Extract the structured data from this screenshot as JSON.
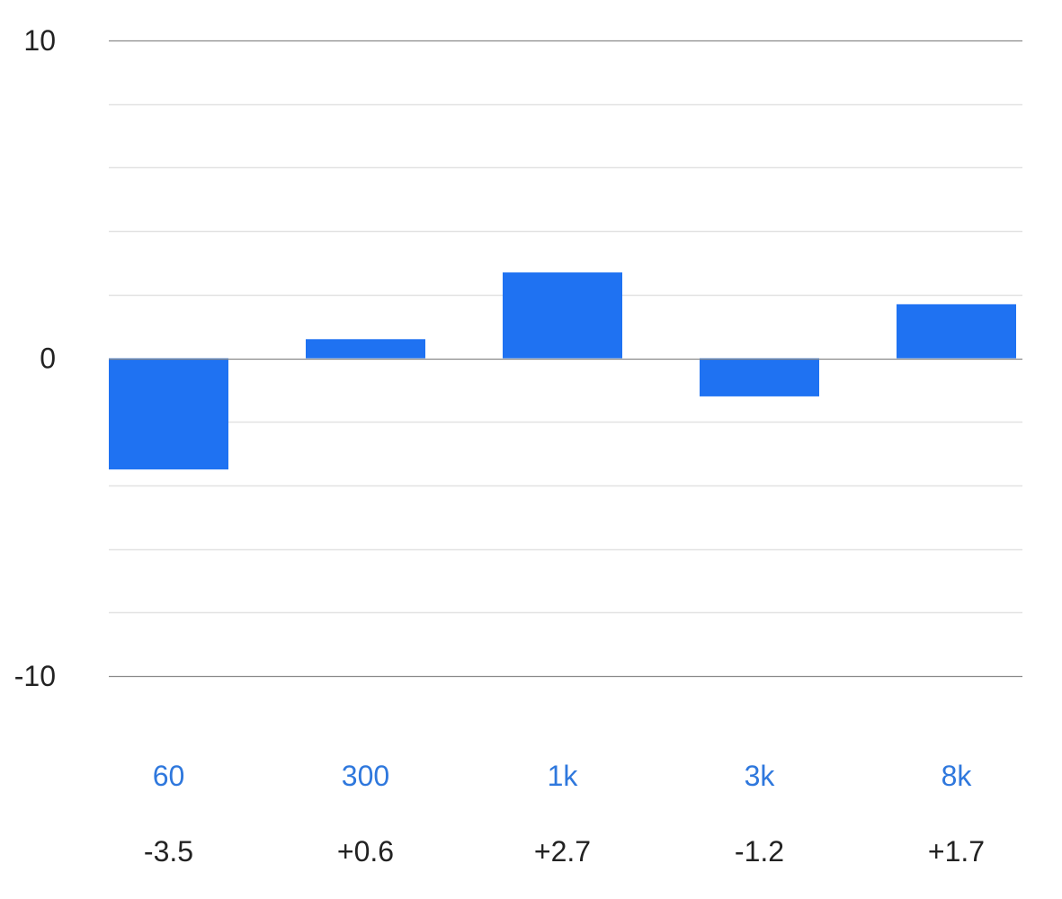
{
  "chart_data": {
    "type": "bar",
    "categories": [
      "60",
      "300",
      "1k",
      "3k",
      "8k"
    ],
    "values": [
      -3.5,
      0.6,
      2.7,
      -1.2,
      1.7
    ],
    "value_labels": [
      "-3.5",
      "+0.6",
      "+2.7",
      "-1.2",
      "+1.7"
    ],
    "ylim": [
      -10,
      10
    ],
    "y_ticks": [
      10,
      0,
      -10
    ],
    "y_tick_labels": [
      "10",
      "0",
      "-10"
    ],
    "grid_step": 2,
    "grid": true,
    "title": "",
    "xlabel": "",
    "ylabel": ""
  },
  "colors": {
    "bar": "#1F72F2",
    "band_label": "#2F78DD",
    "value_label": "#222222",
    "grid_minor": "#E2E2E2",
    "grid_major": "#8A8A8A"
  }
}
